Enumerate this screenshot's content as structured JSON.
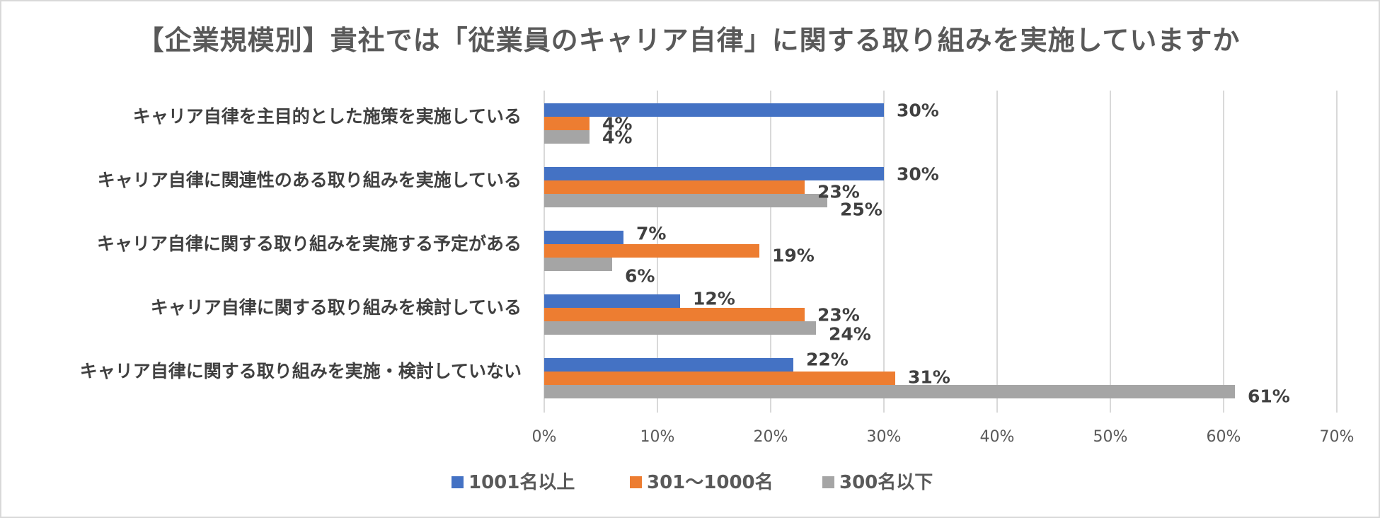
{
  "chart_data": {
    "type": "bar",
    "orientation": "horizontal",
    "title": "【企業規模別】貴社では「従業員のキャリア自律」に関する取り組みを実施していますか",
    "categories": [
      "キャリア自律を主目的とした施策を実施している",
      "キャリア自律に関連性のある取り組みを実施している",
      "キャリア自律に関する取り組みを実施する予定がある",
      "キャリア自律に関する取り組みを検討している",
      "キャリア自律に関する取り組みを実施・検討していない"
    ],
    "series": [
      {
        "name": "1001名以上",
        "color": "#4472c4",
        "values": [
          30,
          30,
          7,
          12,
          22
        ]
      },
      {
        "name": "301〜1000名",
        "color": "#ed7d31",
        "values": [
          4,
          23,
          19,
          23,
          31
        ]
      },
      {
        "name": "300名以下",
        "color": "#a5a5a5",
        "values": [
          4,
          25,
          6,
          24,
          61
        ]
      }
    ],
    "value_suffix": "%",
    "xlim": [
      0,
      70
    ],
    "xticks": [
      0,
      10,
      20,
      30,
      40,
      50,
      60,
      70
    ],
    "xtick_labels": [
      "0%",
      "10%",
      "20%",
      "30%",
      "40%",
      "50%",
      "60%",
      "70%"
    ],
    "grid": "vertical",
    "legend_position": "bottom"
  }
}
